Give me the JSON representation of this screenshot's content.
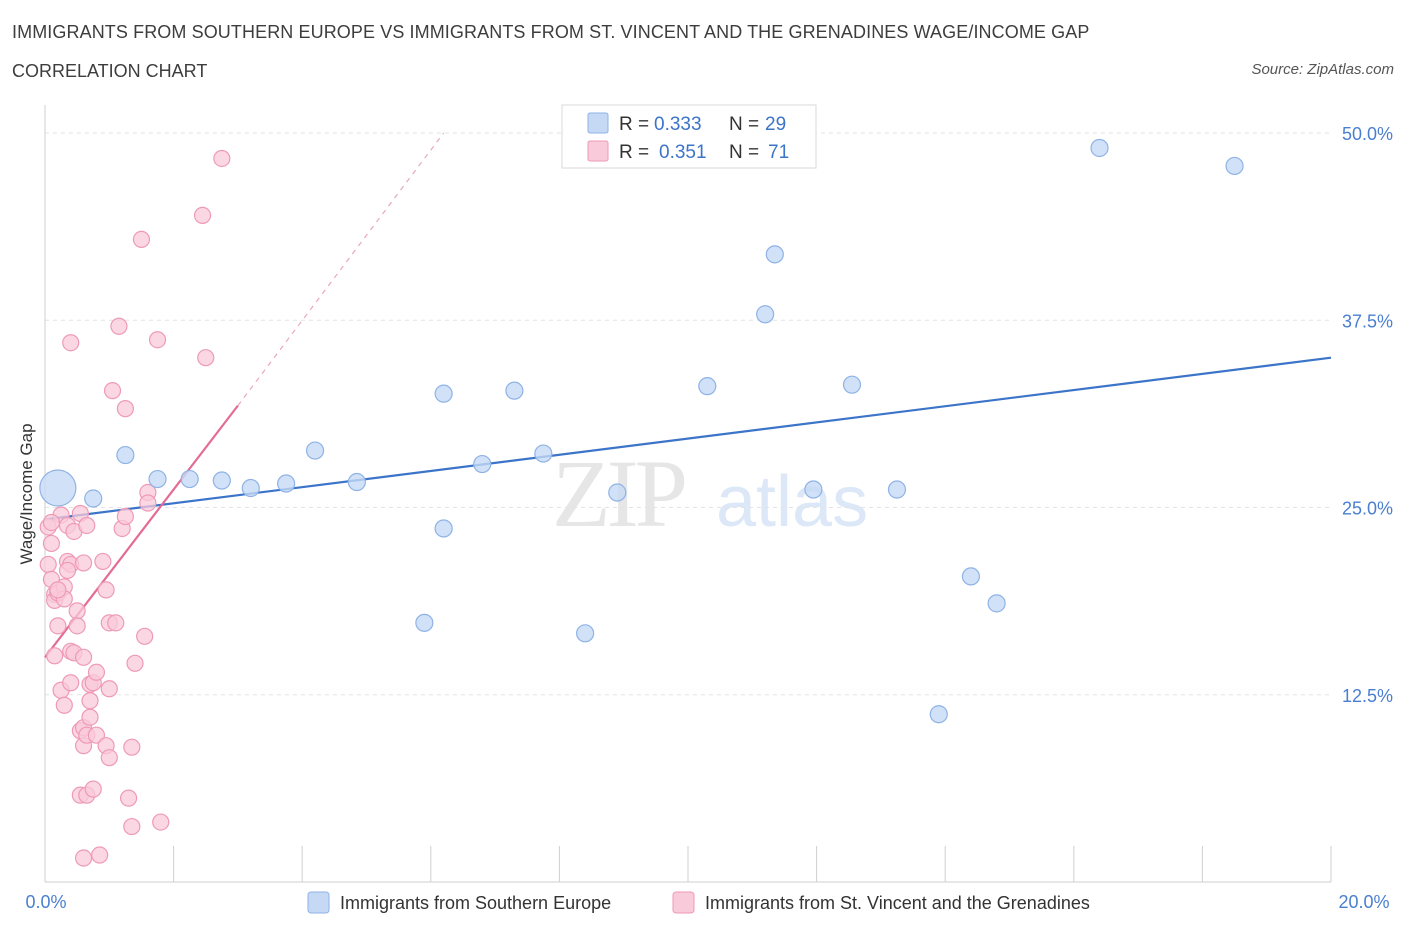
{
  "header": {
    "title": "IMMIGRANTS FROM SOUTHERN EUROPE VS IMMIGRANTS FROM ST. VINCENT AND THE GRENADINES WAGE/INCOME GAP",
    "subtitle": "CORRELATION CHART",
    "source": "Source: ZipAtlas.com"
  },
  "watermark": {
    "zip": "ZIP",
    "atlas": "atlas"
  },
  "colors": {
    "blue_fill": "#c5d9f5",
    "blue_stroke": "#8fb3e6",
    "blue_line": "#3b74c9",
    "pink_fill": "#f9cada",
    "pink_stroke": "#ee9ab6",
    "pink_line": "#e36b95",
    "grid": "#e3e3e3",
    "tick_text": "#4a7fd0"
  },
  "chart_data": {
    "type": "scatter",
    "title": "IMMIGRANTS FROM SOUTHERN EUROPE VS IMMIGRANTS FROM ST. VINCENT AND THE GRENADINES WAGE/INCOME GAP",
    "xlabel": "",
    "ylabel": "Wage/Income Gap",
    "xlim": [
      0,
      20
    ],
    "ylim": [
      0,
      50
    ],
    "x_tick_labels": {
      "min": "0.0%",
      "max": "20.0%"
    },
    "y_ticks": [
      {
        "value": 12.5,
        "label": "12.5%"
      },
      {
        "value": 25.0,
        "label": "25.0%"
      },
      {
        "value": 37.5,
        "label": "37.5%"
      },
      {
        "value": 50.0,
        "label": "50.0%"
      }
    ],
    "grid": true,
    "legend_position": "bottom",
    "stats": [
      {
        "r_label": "R =",
        "r": "0.333",
        "n_label": "N =",
        "n": "29"
      },
      {
        "r_label": "R =",
        "r": "0.351",
        "n_label": "N =",
        "n": "71"
      }
    ],
    "series": [
      {
        "name": "Immigrants from Southern Europe",
        "color": "blue",
        "trend": {
          "x": [
            0,
            20
          ],
          "y": [
            24.2,
            35.0
          ]
        },
        "points": [
          {
            "x": 0.2,
            "y": 26.3,
            "big": true
          },
          {
            "x": 0.75,
            "y": 25.6
          },
          {
            "x": 1.25,
            "y": 28.5
          },
          {
            "x": 1.75,
            "y": 26.9
          },
          {
            "x": 2.25,
            "y": 26.9
          },
          {
            "x": 2.75,
            "y": 26.8
          },
          {
            "x": 3.2,
            "y": 26.3
          },
          {
            "x": 3.75,
            "y": 26.6
          },
          {
            "x": 4.2,
            "y": 28.8
          },
          {
            "x": 4.85,
            "y": 26.7
          },
          {
            "x": 5.9,
            "y": 17.3
          },
          {
            "x": 6.2,
            "y": 23.6
          },
          {
            "x": 6.2,
            "y": 32.6
          },
          {
            "x": 6.8,
            "y": 27.9
          },
          {
            "x": 7.3,
            "y": 32.8
          },
          {
            "x": 7.75,
            "y": 28.6
          },
          {
            "x": 8.4,
            "y": 16.6
          },
          {
            "x": 8.9,
            "y": 26.0
          },
          {
            "x": 10.3,
            "y": 33.1
          },
          {
            "x": 11.2,
            "y": 37.9
          },
          {
            "x": 11.35,
            "y": 41.9
          },
          {
            "x": 11.95,
            "y": 26.2
          },
          {
            "x": 12.55,
            "y": 33.2
          },
          {
            "x": 13.25,
            "y": 26.2
          },
          {
            "x": 13.9,
            "y": 11.2
          },
          {
            "x": 14.4,
            "y": 20.4
          },
          {
            "x": 14.8,
            "y": 18.6
          },
          {
            "x": 16.4,
            "y": 49.0
          },
          {
            "x": 18.5,
            "y": 47.8
          }
        ]
      },
      {
        "name": "Immigrants from St. Vincent and the Grenadines",
        "color": "pink",
        "trend": {
          "x": [
            0,
            3.0
          ],
          "y": [
            15.0,
            31.8
          ]
        },
        "trend_ext": {
          "x": [
            3.0,
            6.2
          ],
          "y": [
            31.8,
            50.0
          ]
        },
        "points": [
          {
            "x": 0.05,
            "y": 21.2
          },
          {
            "x": 0.05,
            "y": 23.7
          },
          {
            "x": 0.1,
            "y": 22.6
          },
          {
            "x": 0.1,
            "y": 20.2
          },
          {
            "x": 0.15,
            "y": 19.2
          },
          {
            "x": 0.15,
            "y": 18.8
          },
          {
            "x": 0.15,
            "y": 15.1
          },
          {
            "x": 0.2,
            "y": 19.3
          },
          {
            "x": 0.2,
            "y": 17.1
          },
          {
            "x": 0.25,
            "y": 24.5
          },
          {
            "x": 0.25,
            "y": 12.8
          },
          {
            "x": 0.3,
            "y": 11.8
          },
          {
            "x": 0.3,
            "y": 19.7
          },
          {
            "x": 0.3,
            "y": 18.9
          },
          {
            "x": 0.35,
            "y": 23.8
          },
          {
            "x": 0.35,
            "y": 21.4
          },
          {
            "x": 0.4,
            "y": 21.2
          },
          {
            "x": 0.4,
            "y": 15.4
          },
          {
            "x": 0.4,
            "y": 13.3
          },
          {
            "x": 0.4,
            "y": 36.0
          },
          {
            "x": 0.45,
            "y": 23.4
          },
          {
            "x": 0.45,
            "y": 15.3
          },
          {
            "x": 0.5,
            "y": 18.1
          },
          {
            "x": 0.5,
            "y": 17.1
          },
          {
            "x": 0.55,
            "y": 24.6
          },
          {
            "x": 0.6,
            "y": 15.0
          },
          {
            "x": 0.6,
            "y": 21.3
          },
          {
            "x": 0.6,
            "y": 9.1
          },
          {
            "x": 0.55,
            "y": 10.1
          },
          {
            "x": 0.6,
            "y": 10.3
          },
          {
            "x": 0.55,
            "y": 5.8
          },
          {
            "x": 0.6,
            "y": 1.6
          },
          {
            "x": 0.65,
            "y": 23.8
          },
          {
            "x": 0.65,
            "y": 9.8
          },
          {
            "x": 0.65,
            "y": 5.8
          },
          {
            "x": 0.7,
            "y": 13.2
          },
          {
            "x": 0.7,
            "y": 11.0
          },
          {
            "x": 0.7,
            "y": 12.1
          },
          {
            "x": 0.75,
            "y": 13.3
          },
          {
            "x": 0.75,
            "y": 6.2
          },
          {
            "x": 0.8,
            "y": 9.8
          },
          {
            "x": 0.8,
            "y": 14.0
          },
          {
            "x": 0.85,
            "y": 1.8
          },
          {
            "x": 0.9,
            "y": 21.4
          },
          {
            "x": 0.95,
            "y": 9.1
          },
          {
            "x": 0.95,
            "y": 19.5
          },
          {
            "x": 1.0,
            "y": 17.3
          },
          {
            "x": 1.0,
            "y": 8.3
          },
          {
            "x": 1.0,
            "y": 12.9
          },
          {
            "x": 1.05,
            "y": 32.8
          },
          {
            "x": 1.1,
            "y": 17.3
          },
          {
            "x": 1.15,
            "y": 37.1
          },
          {
            "x": 1.2,
            "y": 23.6
          },
          {
            "x": 1.25,
            "y": 31.6
          },
          {
            "x": 1.25,
            "y": 24.4
          },
          {
            "x": 1.3,
            "y": 5.6
          },
          {
            "x": 1.35,
            "y": 9.0
          },
          {
            "x": 1.35,
            "y": 3.7
          },
          {
            "x": 1.4,
            "y": 14.6
          },
          {
            "x": 1.5,
            "y": 42.9
          },
          {
            "x": 1.55,
            "y": 16.4
          },
          {
            "x": 1.6,
            "y": 26.0
          },
          {
            "x": 1.6,
            "y": 25.3
          },
          {
            "x": 1.75,
            "y": 36.2
          },
          {
            "x": 1.8,
            "y": 4.0
          },
          {
            "x": 2.45,
            "y": 44.5
          },
          {
            "x": 2.5,
            "y": 35.0
          },
          {
            "x": 2.75,
            "y": 48.3
          },
          {
            "x": 0.2,
            "y": 19.5
          },
          {
            "x": 0.1,
            "y": 24.0
          },
          {
            "x": 0.35,
            "y": 20.8
          }
        ]
      }
    ]
  }
}
